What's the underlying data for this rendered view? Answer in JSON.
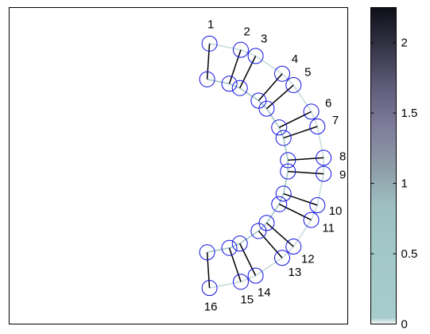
{
  "figure": {
    "node_labels": [
      "1",
      "2",
      "3",
      "4",
      "5",
      "6",
      "7",
      "8",
      "9",
      "10",
      "11",
      "12",
      "13",
      "14",
      "15",
      "16"
    ],
    "colors": {
      "node_stroke": "#1010e0",
      "outer_ring_edge": "#c8dcdc",
      "inner_ring_edge": "#a2c6c6",
      "spoke_edge": "#000000",
      "axes_frame": "#000000"
    },
    "colorbar": {
      "ticks": [
        "0",
        "0.5",
        "1",
        "1.5",
        "2"
      ],
      "tick_values": [
        0,
        0.5,
        1,
        1.5,
        2
      ],
      "range": [
        0,
        2.25
      ],
      "colormap": "bone (reversed, light teal-gray to near-black)",
      "stops": [
        "#f4f8f8",
        "#a7cccc",
        "#a2c7c7",
        "#9dbfc0",
        "#8d9aa7",
        "#7e7c9a",
        "#5e5c78",
        "#353447",
        "#0f0f18"
      ]
    },
    "edges": {
      "spoke_weight": 2.2,
      "inner_ring_weight": 0.45,
      "outer_ring_weight": 0.15
    }
  }
}
